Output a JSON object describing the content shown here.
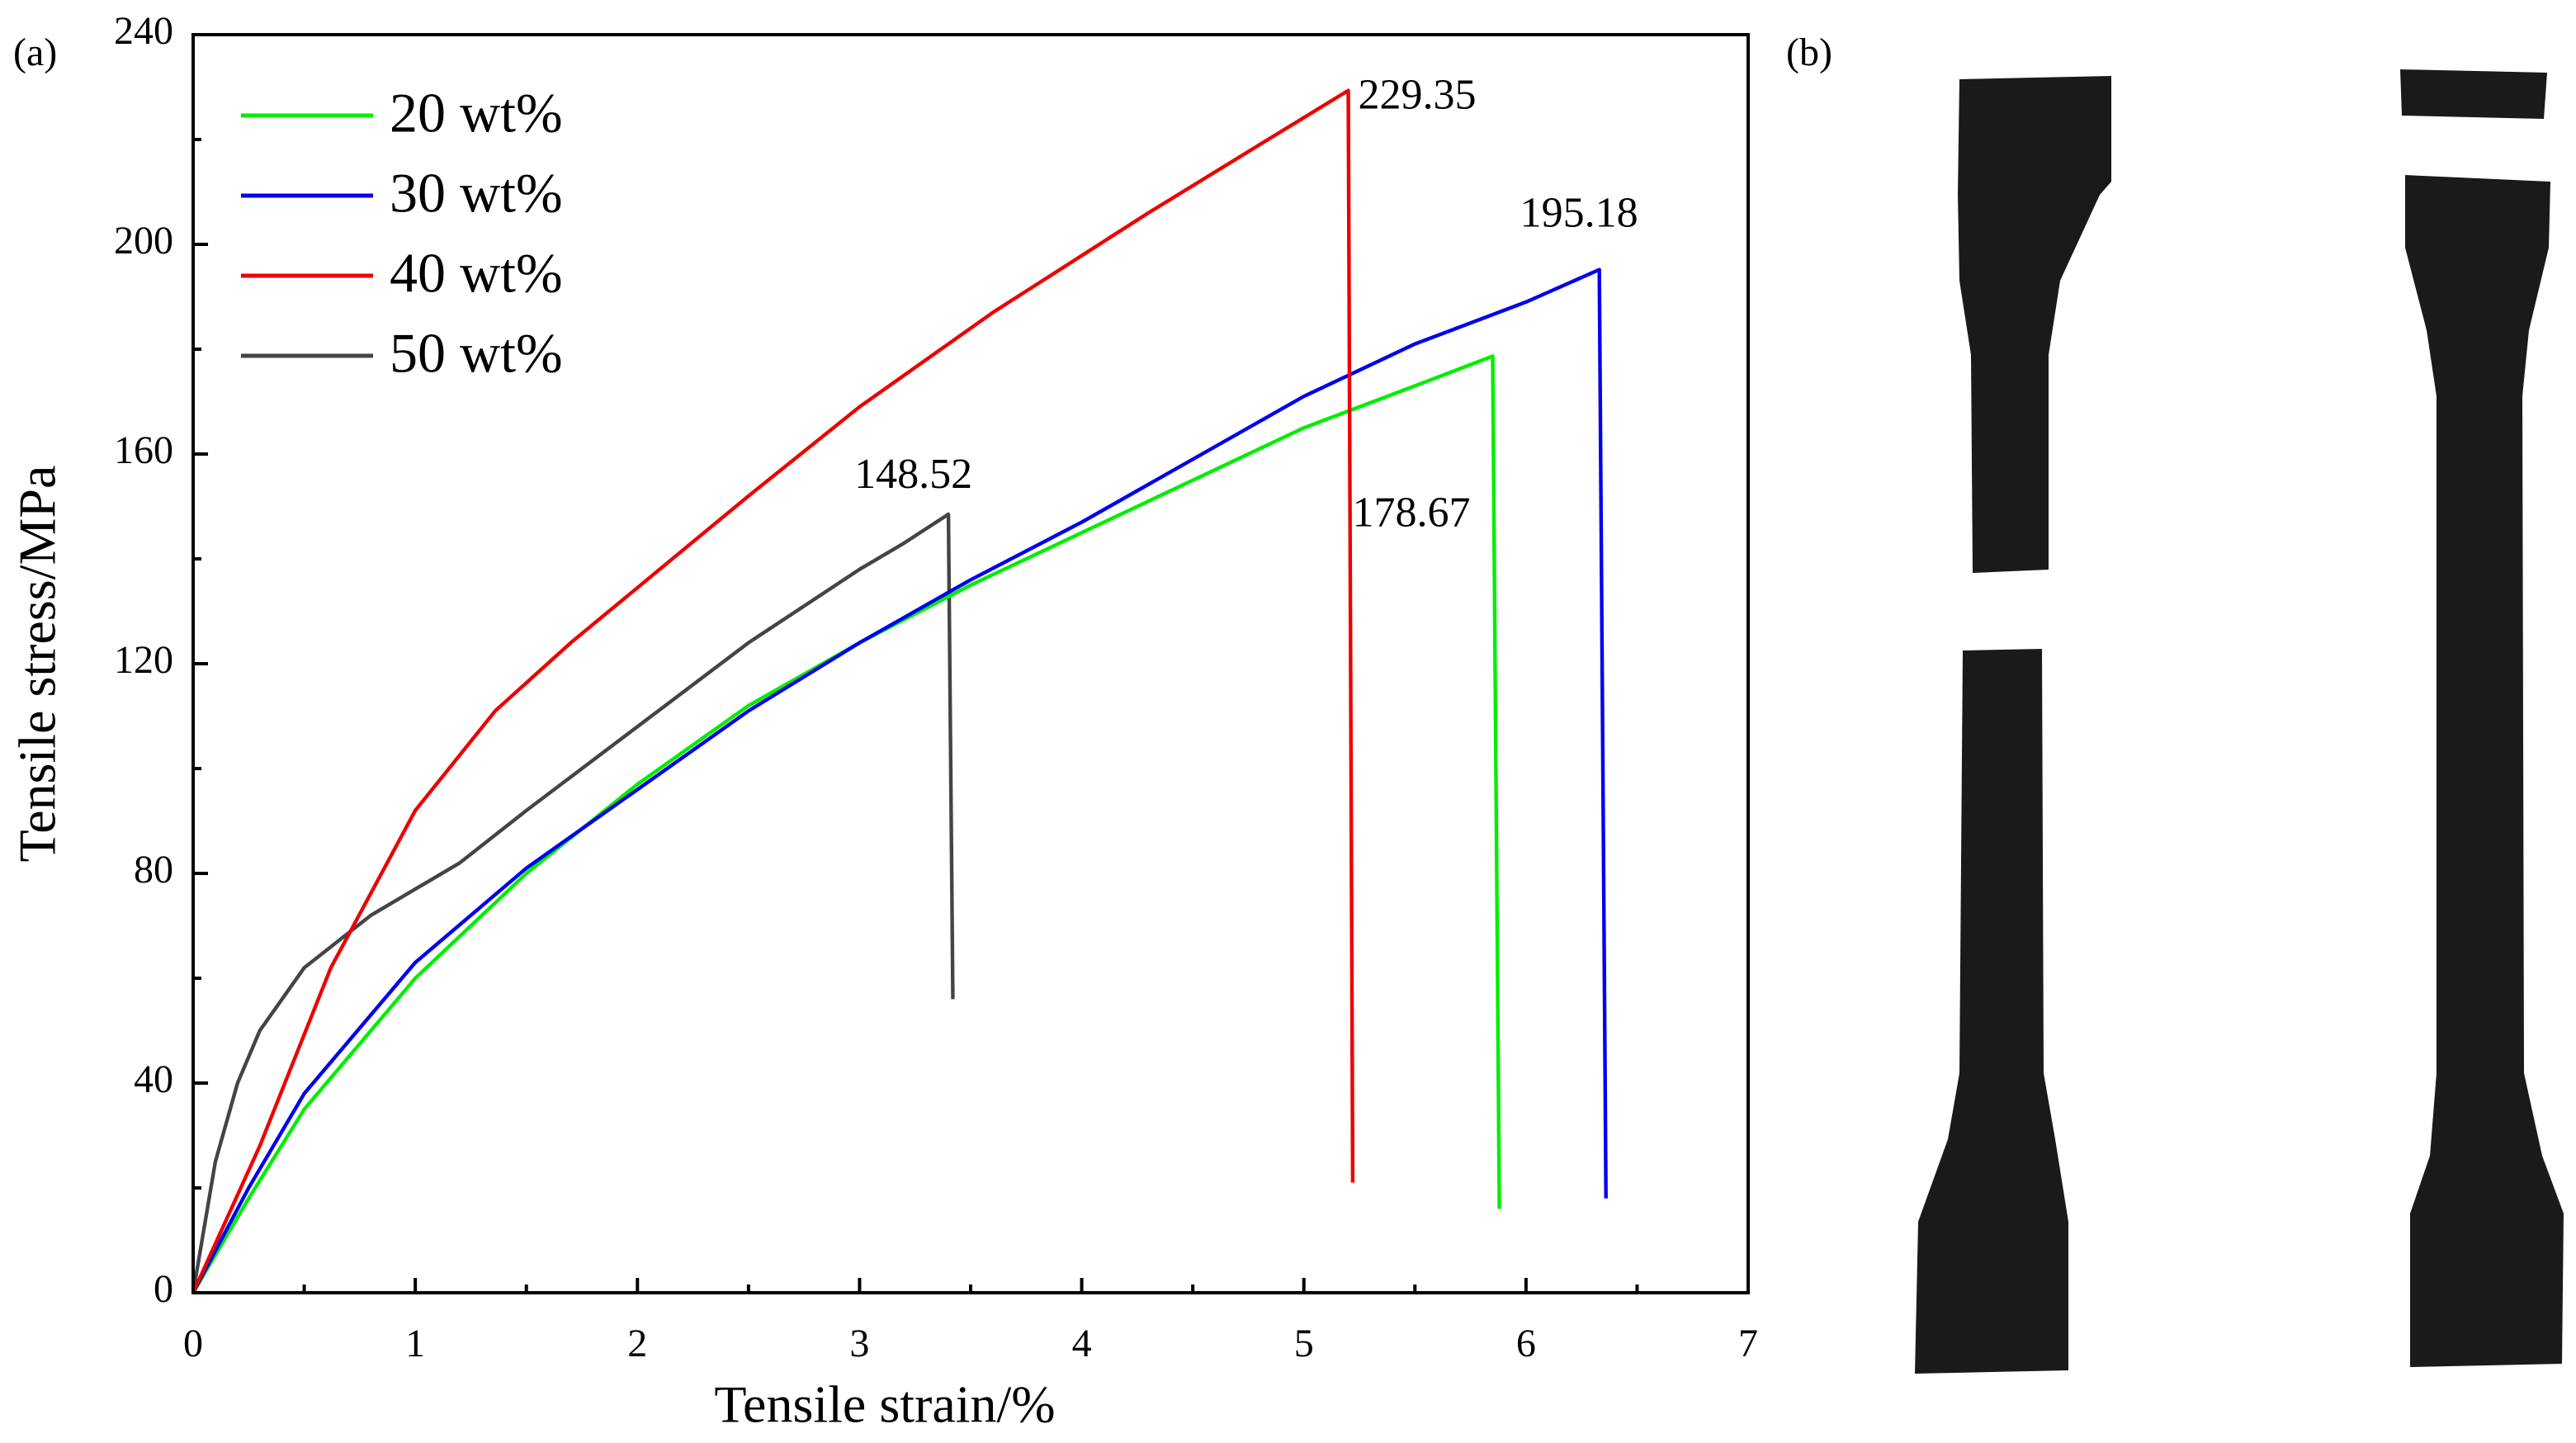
{
  "chart_data": {
    "type": "line",
    "panel_a": "(a)",
    "panel_b": "(b)",
    "x_label": "Tensile strain/%",
    "y_label": "Tensile stress/MPa",
    "xlim": [
      0,
      7
    ],
    "ylim": [
      0,
      240
    ],
    "xticks": [
      0,
      1,
      2,
      3,
      4,
      5,
      6,
      7
    ],
    "yticks": [
      0,
      40,
      80,
      120,
      160,
      200,
      240
    ],
    "legend": "upper left",
    "series": [
      {
        "name": "20 wt%",
        "color": "#00ee00",
        "x": [
          0,
          0.25,
          0.5,
          1,
          1.5,
          2,
          2.5,
          3,
          3.5,
          4,
          4.5,
          5,
          5.5,
          5.85,
          5.88
        ],
        "values": [
          0,
          18,
          35,
          60,
          80,
          97,
          112,
          124,
          135,
          145,
          155,
          165,
          173,
          178.67,
          16
        ],
        "peak": 178.67
      },
      {
        "name": "30 wt%",
        "color": "#0000ee",
        "x": [
          0,
          0.25,
          0.5,
          1,
          1.5,
          2,
          2.5,
          3,
          3.5,
          4,
          4.5,
          5,
          5.5,
          6,
          6.33,
          6.36
        ],
        "values": [
          0,
          20,
          38,
          63,
          81,
          96,
          111,
          124,
          136,
          147,
          159,
          171,
          181,
          189,
          195.18,
          18
        ],
        "peak": 195.18
      },
      {
        "name": "40 wt%",
        "color": "#ee0000",
        "x": [
          0,
          0.3,
          0.62,
          1,
          1.36,
          1.7,
          2.1,
          2.5,
          3,
          3.6,
          4.3,
          4.8,
          5.2,
          5.22
        ],
        "values": [
          0,
          28,
          62,
          92,
          111,
          124,
          138,
          152,
          169,
          187,
          206,
          219,
          229.35,
          21
        ],
        "peak": 229.35
      },
      {
        "name": "50 wt%",
        "color": "#444444",
        "x": [
          0,
          0.1,
          0.2,
          0.3,
          0.5,
          0.8,
          1,
          1.2,
          1.5,
          2,
          2.5,
          3,
          3.2,
          3.4,
          3.42
        ],
        "values": [
          0,
          25,
          40,
          50,
          62,
          72,
          77,
          82,
          92,
          108,
          124,
          138,
          143,
          148.52,
          56
        ],
        "peak": 148.52
      }
    ]
  }
}
